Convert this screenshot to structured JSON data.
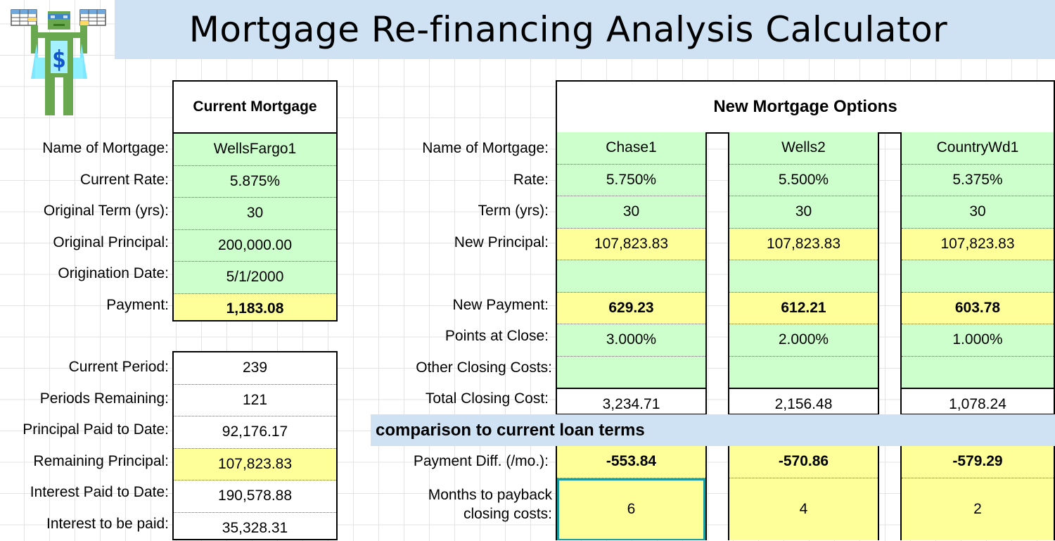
{
  "title": "Mortgage Re-financing Analysis Calculator",
  "current": {
    "header": "Current Mortgage",
    "rows": [
      {
        "label": "Name of Mortgage:",
        "value": "WellsFargo1"
      },
      {
        "label": "Current Rate:",
        "value": "5.875%"
      },
      {
        "label": "Original Term (yrs):",
        "value": "30"
      },
      {
        "label": "Original Principal:",
        "value": "200,000.00"
      },
      {
        "label": "Origination Date:",
        "value": "5/1/2000"
      },
      {
        "label": "Payment:",
        "value": "1,183.08"
      }
    ],
    "rows2": [
      {
        "label": "Current Period:",
        "value": "239"
      },
      {
        "label": "Periods Remaining:",
        "value": "121"
      },
      {
        "label": "Principal Paid to Date:",
        "value": "92,176.17"
      },
      {
        "label": "Remaining Principal:",
        "value": "107,823.83"
      },
      {
        "label": "Interest Paid to Date:",
        "value": "190,578.88"
      },
      {
        "label": "Interest to be paid:",
        "value": "35,328.31"
      }
    ]
  },
  "new": {
    "header": "New Mortgage Options",
    "labels": {
      "name": "Name of Mortgage:",
      "rate": "Rate:",
      "term": "Term (yrs):",
      "principal": "New Principal:",
      "payment": "New Payment:",
      "points": "Points at Close:",
      "other": "Other Closing Costs:",
      "total": "Total Closing Cost:",
      "diff": "Payment Diff. (/mo.):",
      "months_1": "Months to payback",
      "months_2": "closing costs:"
    },
    "options": [
      {
        "name": "Chase1",
        "rate": "5.750%",
        "term": "30",
        "principal": "107,823.83",
        "blank": "",
        "payment": "629.23",
        "points": "3.000%",
        "other": "",
        "total": "3,234.71",
        "diff": "-553.84",
        "months": "6"
      },
      {
        "name": "Wells2",
        "rate": "5.500%",
        "term": "30",
        "principal": "107,823.83",
        "blank": "",
        "payment": "612.21",
        "points": "2.000%",
        "other": "",
        "total": "2,156.48",
        "diff": "-570.86",
        "months": "4"
      },
      {
        "name": "CountryWd1",
        "rate": "5.375%",
        "term": "30",
        "principal": "107,823.83",
        "blank": "",
        "payment": "603.78",
        "points": "1.000%",
        "other": "",
        "total": "1,078.24",
        "diff": "-579.29",
        "months": "2"
      }
    ]
  },
  "comparison_title": "comparison to current loan terms",
  "colors": {
    "input_green": "#ccffcc",
    "result_yellow": "#ffff99",
    "banner_blue": "#cfe2f3",
    "selection_teal": "#1a9c9c"
  },
  "icons": {
    "logo": "spreadsheet-robot-logo-icon"
  }
}
